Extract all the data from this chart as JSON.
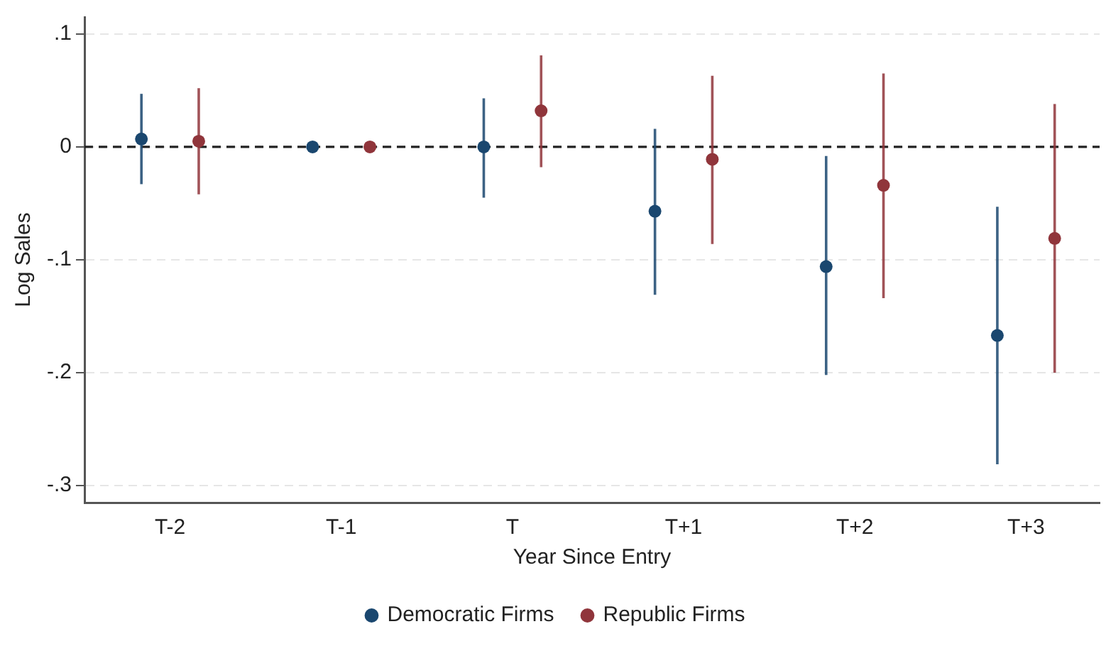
{
  "chart_data": {
    "type": "scatter",
    "xlabel": "Year Since Entry",
    "ylabel": "Log Sales",
    "categories": [
      "T-2",
      "T-1",
      "T",
      "T+1",
      "T+2",
      "T+3"
    ],
    "series": [
      {
        "name": "Democratic Firms",
        "color": "#1a476f",
        "values": [
          0.007,
          0,
          0,
          -0.057,
          -0.106,
          -0.167
        ],
        "errors": [
          [
            -0.033,
            0.047
          ],
          null,
          [
            -0.045,
            0.043
          ],
          [
            -0.131,
            0.016
          ],
          [
            -0.202,
            -0.008
          ],
          [
            -0.281,
            -0.053
          ]
        ]
      },
      {
        "name": "Republic Firms",
        "color": "#90353b",
        "values": [
          0.005,
          0,
          0.032,
          -0.011,
          -0.034,
          -0.081
        ],
        "errors": [
          [
            -0.042,
            0.052
          ],
          null,
          [
            -0.018,
            0.081
          ],
          [
            -0.086,
            0.063
          ],
          [
            -0.134,
            0.065
          ],
          [
            -0.2,
            0.038
          ]
        ]
      }
    ],
    "ylim": [
      -0.315,
      0.115
    ],
    "yticks": [
      {
        "value": 0.1,
        "label": ".1"
      },
      0,
      {
        "value": -0.1,
        "label": "-.1"
      },
      {
        "value": -0.2,
        "label": "-.2"
      },
      {
        "value": -0.3,
        "label": "-.3"
      }
    ],
    "ref_lines": [
      {
        "axis": "y",
        "value": 0,
        "line_style": "dashed",
        "color": "#222222"
      }
    ],
    "grid": "y",
    "legend": "bottom",
    "marker": "circle"
  }
}
